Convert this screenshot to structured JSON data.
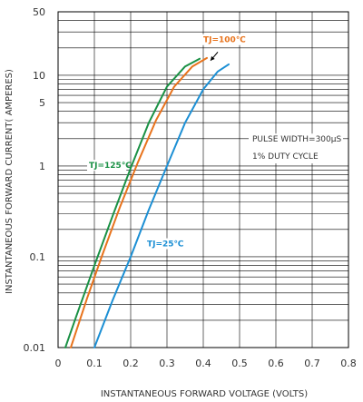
{
  "chart_data": {
    "type": "line",
    "xlabel": "INSTANTANEOUS FORWARD VOLTAGE (VOLTS)",
    "ylabel": "INSTANTANEOUS FORWARD CURRENT( AMPERES)",
    "xlim": [
      0,
      0.8
    ],
    "ylim": [
      0.01,
      50
    ],
    "yscale": "log",
    "grid": true,
    "x_ticks": [
      "0",
      "0.1",
      "0.2",
      "0.3",
      "0.4",
      "0.5",
      "0.6",
      "0.7",
      "0.8"
    ],
    "y_ticks": [
      "50",
      "10",
      "5",
      "1",
      "0.1",
      "0.01"
    ],
    "annotations": [
      "PULSE WIDTH=300μS",
      "1% DUTY CYCLE"
    ],
    "series": [
      {
        "name": "TJ=125℃",
        "color": "#1a9145",
        "x": [
          0.02,
          0.05,
          0.1,
          0.15,
          0.2,
          0.25,
          0.3,
          0.35,
          0.39
        ],
        "y": [
          0.01,
          0.022,
          0.08,
          0.28,
          0.95,
          3.0,
          7.5,
          12.5,
          15.2
        ]
      },
      {
        "name": "TJ=100℃",
        "color": "#e8731c",
        "x": [
          0.035,
          0.08,
          0.12,
          0.17,
          0.22,
          0.27,
          0.32,
          0.37,
          0.41
        ],
        "y": [
          0.01,
          0.035,
          0.1,
          0.35,
          1.1,
          3.2,
          7.5,
          12.5,
          15.5
        ]
      },
      {
        "name": "TJ=25℃",
        "color": "#1c8fd4",
        "x": [
          0.1,
          0.15,
          0.2,
          0.25,
          0.3,
          0.35,
          0.4,
          0.44,
          0.47
        ],
        "y": [
          0.01,
          0.033,
          0.1,
          0.33,
          1.0,
          3.0,
          7.0,
          11.0,
          13.2
        ]
      }
    ],
    "series_labels": [
      {
        "text": "TJ=125℃",
        "x": 0.085,
        "y": 0.95
      },
      {
        "text": "TJ=100℃",
        "x": 0.4,
        "y": 23
      },
      {
        "text": "TJ=25℃",
        "x": 0.245,
        "y": 0.13
      }
    ],
    "arrow": {
      "from": [
        0.44,
        18
      ],
      "to": [
        0.42,
        14.5
      ]
    }
  }
}
